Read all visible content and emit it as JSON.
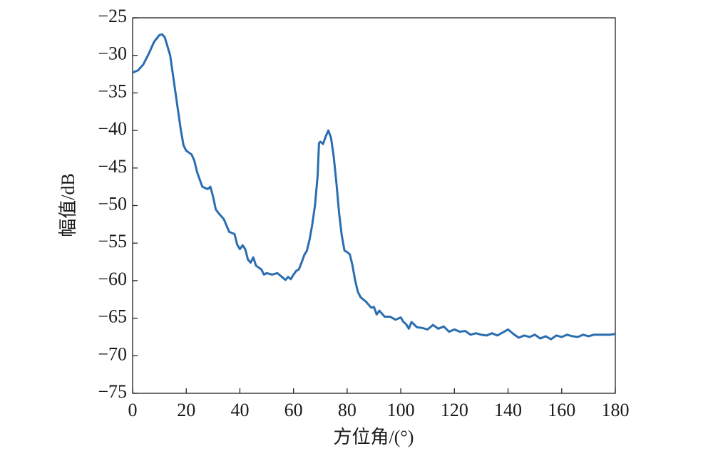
{
  "chart_data": {
    "type": "line",
    "x_label": "方位角/(°)",
    "y_label": "幅值/dB",
    "xlim": [
      0,
      180
    ],
    "xticks": [
      0,
      20,
      40,
      60,
      80,
      100,
      120,
      140,
      160,
      180
    ],
    "ylim": [
      -75,
      -25
    ],
    "yticks": [
      {
        "value": -75,
        "label": "−75"
      },
      {
        "value": -70,
        "label": "−70"
      },
      {
        "value": -65,
        "label": "−65"
      },
      {
        "value": -60,
        "label": "−60"
      },
      {
        "value": -55,
        "label": "−55"
      },
      {
        "value": -50,
        "label": "−50"
      },
      {
        "value": -45,
        "label": "−45"
      },
      {
        "value": -40,
        "label": "−40"
      },
      {
        "value": -35,
        "label": "−35"
      },
      {
        "value": -30,
        "label": "−30"
      },
      {
        "value": -25,
        "label": "−25"
      }
    ],
    "grid": false,
    "x": [
      0,
      2,
      4,
      6,
      8,
      10,
      11,
      12,
      14,
      16,
      18,
      19,
      20,
      22,
      23,
      24,
      25,
      26,
      28,
      29,
      30,
      31,
      32,
      34,
      36,
      38,
      39,
      40,
      41,
      42,
      43,
      44,
      45,
      46,
      48,
      49,
      50,
      52,
      54,
      56,
      57,
      58,
      59,
      60,
      61,
      62,
      63,
      64,
      65,
      66,
      67,
      68,
      69,
      69.5,
      70,
      71,
      72,
      73,
      74,
      75,
      76,
      77,
      78,
      79,
      80,
      81,
      82,
      83,
      84,
      85,
      86,
      87,
      88,
      89,
      90,
      91,
      92,
      93,
      94,
      96,
      98,
      100,
      101,
      102,
      103,
      104,
      106,
      108,
      110,
      112,
      114,
      116,
      118,
      120,
      122,
      124,
      126,
      128,
      130,
      132,
      134,
      136,
      138,
      140,
      142,
      144,
      146,
      148,
      150,
      152,
      154,
      156,
      158,
      160,
      162,
      164,
      166,
      168,
      170,
      172,
      174,
      176,
      178,
      180
    ],
    "series": [
      {
        "color": "#2a6db0",
        "values": [
          -32.3,
          -32.0,
          -31.2,
          -29.8,
          -28.2,
          -27.3,
          -27.2,
          -27.6,
          -30,
          -35,
          -40,
          -42,
          -42.7,
          -43.2,
          -44,
          -45.5,
          -46.5,
          -47.5,
          -47.8,
          -47.5,
          -48.8,
          -50.5,
          -51,
          -51.8,
          -53.5,
          -53.8,
          -55.2,
          -55.8,
          -55.3,
          -55.8,
          -57.2,
          -57.6,
          -56.9,
          -58.0,
          -58.5,
          -59.2,
          -59.0,
          -59.2,
          -59.0,
          -59.6,
          -59.9,
          -59.5,
          -59.8,
          -59.2,
          -58.7,
          -58.5,
          -57.6,
          -56.6,
          -56,
          -54.5,
          -52.5,
          -50,
          -46,
          -41.7,
          -41.5,
          -41.8,
          -40.8,
          -40.0,
          -41.0,
          -43.5,
          -47,
          -51,
          -54,
          -56,
          -56.2,
          -56.5,
          -58,
          -60,
          -61.5,
          -62.2,
          -62.5,
          -62.8,
          -63.2,
          -63.6,
          -63.5,
          -64.5,
          -64,
          -64.4,
          -64.8,
          -64.8,
          -65.2,
          -64.9,
          -65.5,
          -65.8,
          -66.4,
          -65.5,
          -66.2,
          -66.3,
          -66.5,
          -65.9,
          -66.4,
          -66.1,
          -66.8,
          -66.5,
          -66.8,
          -66.7,
          -67.2,
          -67.0,
          -67.2,
          -67.3,
          -67.0,
          -67.3,
          -66.9,
          -66.5,
          -67.1,
          -67.6,
          -67.3,
          -67.5,
          -67.2,
          -67.7,
          -67.4,
          -67.8,
          -67.3,
          -67.5,
          -67.2,
          -67.4,
          -67.5,
          -67.2,
          -67.4,
          -67.2,
          -67.2,
          -67.2,
          -67.2,
          -67.1
        ]
      }
    ]
  }
}
